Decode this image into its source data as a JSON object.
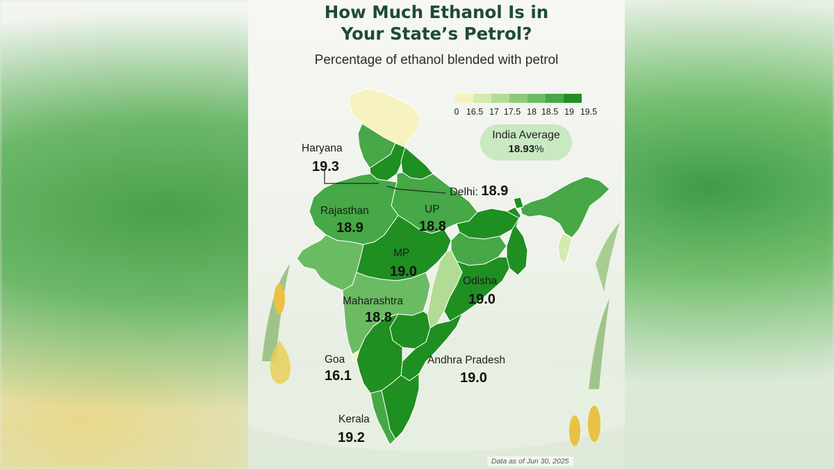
{
  "title_line1": "How Much Ethanol Is in",
  "title_line2": "Your State’s Petrol?",
  "subtitle": "Percentage of ethanol blended with petrol",
  "legend": {
    "labels": [
      "0",
      "16.5",
      "17",
      "17.5",
      "18",
      "18.5",
      "19",
      "19.5"
    ],
    "colors": [
      "#f6f3c0",
      "#d3eab0",
      "#b2dc95",
      "#8dcb78",
      "#6bbb63",
      "#46a846",
      "#1f8f22"
    ]
  },
  "india_average": {
    "label": "India Average",
    "value": "18.93",
    "unit": "%"
  },
  "states": {
    "haryana": {
      "name": "Haryana",
      "value": "19.3"
    },
    "delhi": {
      "name": "Delhi:",
      "value": "18.9"
    },
    "rajasthan": {
      "name": "Rajasthan",
      "value": "18.9"
    },
    "up": {
      "name": "UP",
      "value": "18.8"
    },
    "mp": {
      "name": "MP",
      "value": "19.0"
    },
    "odisha": {
      "name": "Odisha",
      "value": "19.0"
    },
    "maharashtra": {
      "name": "Maharashtra",
      "value": "18.8"
    },
    "goa": {
      "name": "Goa",
      "value": "16.1"
    },
    "andhra": {
      "name": "Andhra Pradesh",
      "value": "19.0"
    },
    "kerala": {
      "name": "Kerala",
      "value": "19.2"
    }
  },
  "footer": "Data as of Jun 30, 2025"
}
